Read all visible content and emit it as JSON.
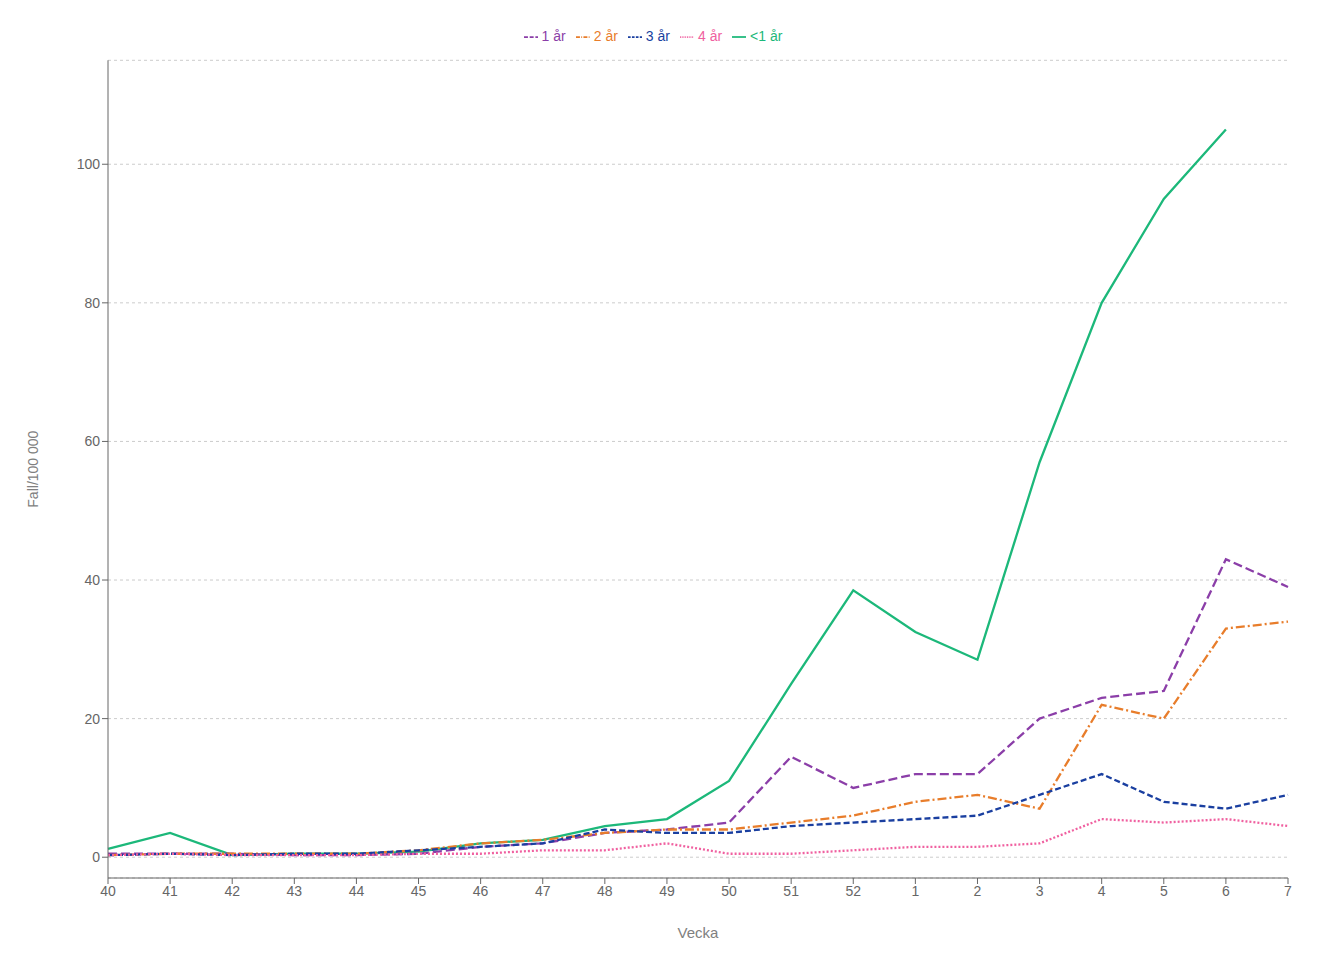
{
  "chart_data": {
    "type": "line",
    "xlabel": "Vecka",
    "ylabel": "Fall/100 000",
    "categories": [
      "40",
      "41",
      "42",
      "43",
      "44",
      "45",
      "46",
      "47",
      "48",
      "49",
      "50",
      "51",
      "52",
      "1",
      "2",
      "3",
      "4",
      "5",
      "6",
      "7"
    ],
    "series": [
      {
        "name": "<1 år",
        "color": "#1cb87a",
        "line_style": "solid",
        "values": [
          1.2,
          3.5,
          0.3,
          0.5,
          0.5,
          0.8,
          2.0,
          2.5,
          4.5,
          5.5,
          11.0,
          25.0,
          38.5,
          32.5,
          28.5,
          57.0,
          80.0,
          95.0,
          105.0,
          null
        ]
      },
      {
        "name": "1 år",
        "color": "#8b3ea8",
        "line_style": "dashed",
        "values": [
          0.5,
          0.5,
          0.5,
          0.3,
          0.3,
          0.5,
          1.5,
          2.0,
          3.5,
          4.0,
          5.0,
          14.5,
          10.0,
          12.0,
          12.0,
          20.0,
          23.0,
          24.0,
          43.0,
          39.0
        ]
      },
      {
        "name": "2 år",
        "color": "#e87d2b",
        "line_style": "dashdot",
        "values": [
          0.3,
          0.5,
          0.5,
          0.5,
          0.5,
          1.0,
          2.0,
          2.5,
          3.5,
          4.0,
          4.0,
          5.0,
          6.0,
          8.0,
          9.0,
          7.0,
          22.0,
          20.0,
          33.0,
          34.0
        ]
      },
      {
        "name": "3 år",
        "color": "#1a3fa0",
        "line_style": "dashed2",
        "values": [
          0.3,
          0.5,
          0.3,
          0.5,
          0.5,
          1.0,
          1.5,
          2.0,
          4.0,
          3.5,
          3.5,
          4.5,
          5.0,
          5.5,
          6.0,
          9.0,
          12.0,
          8.0,
          7.0,
          9.0
        ]
      },
      {
        "name": "4 år",
        "color": "#f060a0",
        "line_style": "dotted",
        "values": [
          0.3,
          0.5,
          0.3,
          0.3,
          0.3,
          0.5,
          0.5,
          1.0,
          1.0,
          2.0,
          0.5,
          0.5,
          1.0,
          1.5,
          1.5,
          2.0,
          5.5,
          5.0,
          5.5,
          4.5
        ]
      }
    ],
    "ylim": [
      -3,
      115
    ],
    "yticks": [
      0,
      20,
      40,
      60,
      80,
      100
    ],
    "grid": true,
    "legend": "top"
  }
}
